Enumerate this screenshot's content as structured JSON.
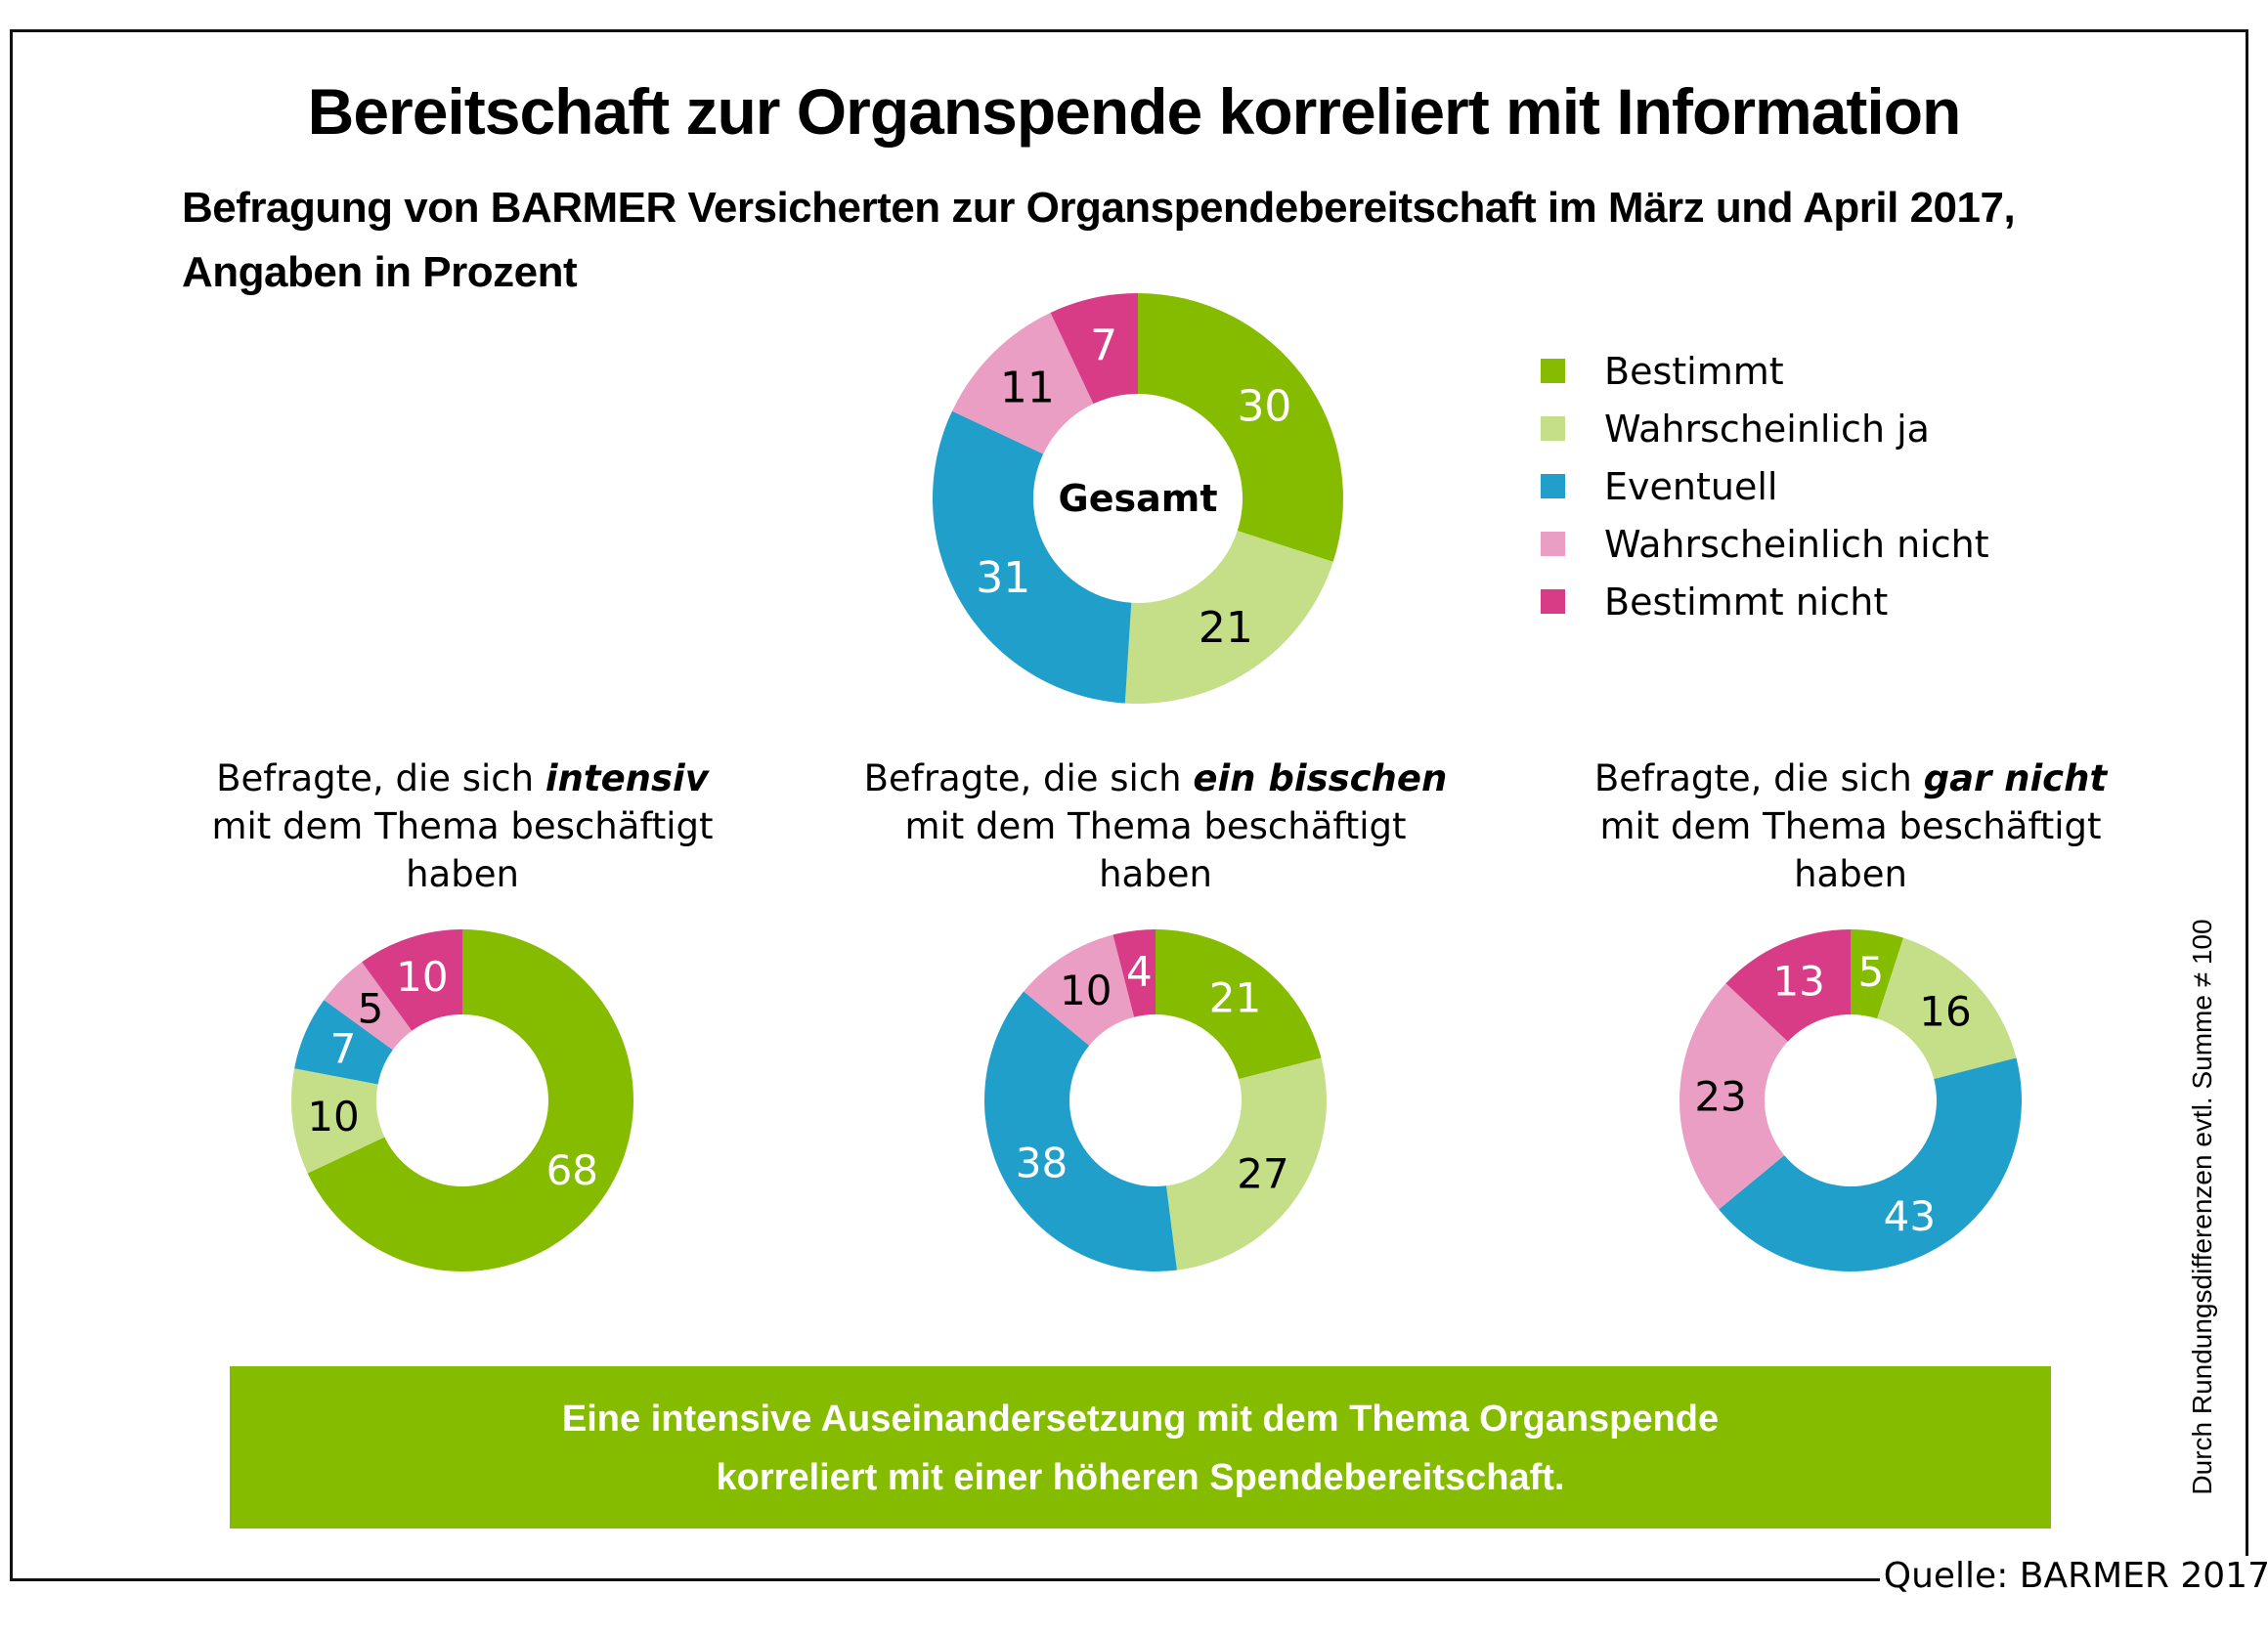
{
  "title": "Bereitschaft zur Organspende korreliert mit Information",
  "subtitle_line1": "Befragung von BARMER Versicherten zur Organspendebereitschaft im März und April 2017,",
  "subtitle_line2": "Angaben in Prozent",
  "categories": [
    "Bestimmt",
    "Wahrscheinlich ja",
    "Eventuell",
    "Wahrscheinlich nicht",
    "Bestimmt nicht"
  ],
  "colors": [
    "#86BC00",
    "#C4DF87",
    "#219FCB",
    "#EA9EC3",
    "#D93C87"
  ],
  "label_colors": [
    "#ffffff",
    "#000000",
    "#ffffff",
    "#000000",
    "#ffffff"
  ],
  "legend": [
    {
      "label": "Bestimmt",
      "color": "#86BC00"
    },
    {
      "label": "Wahrscheinlich ja",
      "color": "#C4DF87"
    },
    {
      "label": "Eventuell",
      "color": "#219FCB"
    },
    {
      "label": "Wahrscheinlich nicht",
      "color": "#EA9EC3"
    },
    {
      "label": "Bestimmt nicht",
      "color": "#D93C87"
    }
  ],
  "captions": [
    {
      "pre": "Befragte, die sich ",
      "emph": "intensiv",
      "line2": "mit dem Thema beschäftigt",
      "line3": "haben"
    },
    {
      "pre": "Befragte, die sich ",
      "emph": "ein bisschen",
      "line2": "mit dem Thema beschäftigt",
      "line3": "haben"
    },
    {
      "pre": "Befragte, die sich ",
      "emph": "gar nicht",
      "line2": "mit dem Thema beschäftigt",
      "line3": "haben"
    }
  ],
  "conclusion_line1": "Eine intensive Auseinandersetzung mit dem Thema Organspende",
  "conclusion_line2": "korreliert mit einer höheren Spendebereitschaft.",
  "rounding_note": "Durch Rundungsdifferenzen evtl. Summe ≠ 100",
  "source": "Quelle: BARMER 2017",
  "chart_data": [
    {
      "type": "pie",
      "variant": "donut",
      "name": "Gesamt",
      "center_label": "Gesamt",
      "categories": [
        "Bestimmt",
        "Wahrscheinlich ja",
        "Eventuell",
        "Wahrscheinlich nicht",
        "Bestimmt nicht"
      ],
      "values": [
        30,
        21,
        31,
        11,
        7
      ],
      "unit": "%"
    },
    {
      "type": "pie",
      "variant": "donut",
      "name": "intensiv",
      "categories": [
        "Bestimmt",
        "Wahrscheinlich ja",
        "Eventuell",
        "Wahrscheinlich nicht",
        "Bestimmt nicht"
      ],
      "values": [
        68,
        10,
        7,
        5,
        10
      ],
      "unit": "%"
    },
    {
      "type": "pie",
      "variant": "donut",
      "name": "ein bisschen",
      "categories": [
        "Bestimmt",
        "Wahrscheinlich ja",
        "Eventuell",
        "Wahrscheinlich nicht",
        "Bestimmt nicht"
      ],
      "values": [
        21,
        27,
        38,
        10,
        4
      ],
      "unit": "%"
    },
    {
      "type": "pie",
      "variant": "donut",
      "name": "gar nicht",
      "categories": [
        "Bestimmt",
        "Wahrscheinlich ja",
        "Eventuell",
        "Wahrscheinlich nicht",
        "Bestimmt nicht"
      ],
      "values": [
        5,
        16,
        43,
        23,
        13
      ],
      "unit": "%"
    }
  ]
}
